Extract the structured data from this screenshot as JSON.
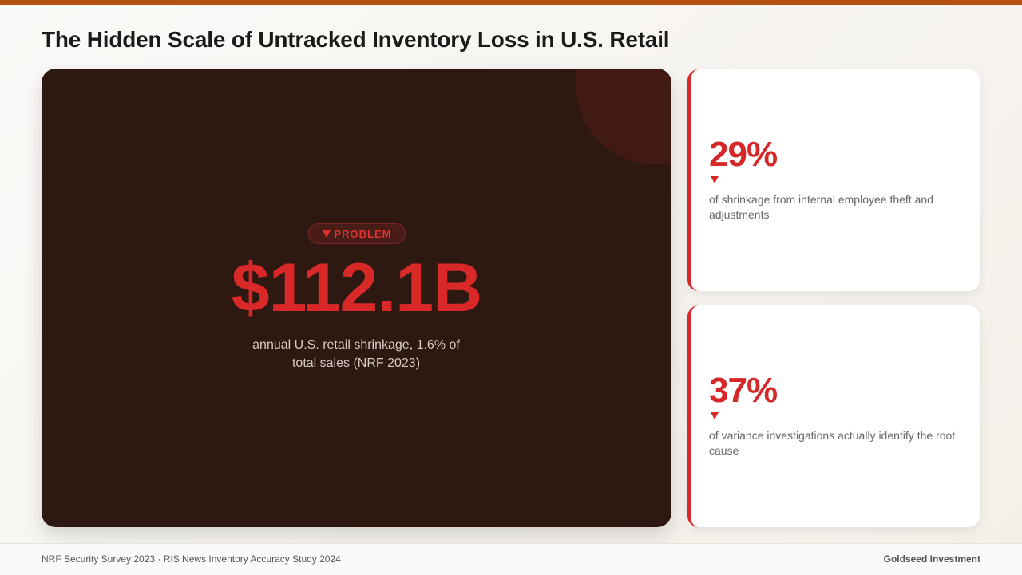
{
  "header": {
    "title": "The Hidden Scale of Untracked Inventory Loss in U.S. Retail"
  },
  "hero": {
    "badge": "PROBLEM",
    "value": "$112.1B",
    "description": "annual U.S. retail shrinkage, 1.6% of total sales (NRF 2023)"
  },
  "cards": [
    {
      "value": "29%",
      "description": "of shrinkage from internal employee theft and adjustments"
    },
    {
      "value": "37%",
      "description": "of variance investigations actually identify the root cause"
    }
  ],
  "footer": {
    "source": "NRF Security Survey 2023 · RIS News Inventory Accuracy Study 2024",
    "brand": "Goldseed Investment"
  }
}
